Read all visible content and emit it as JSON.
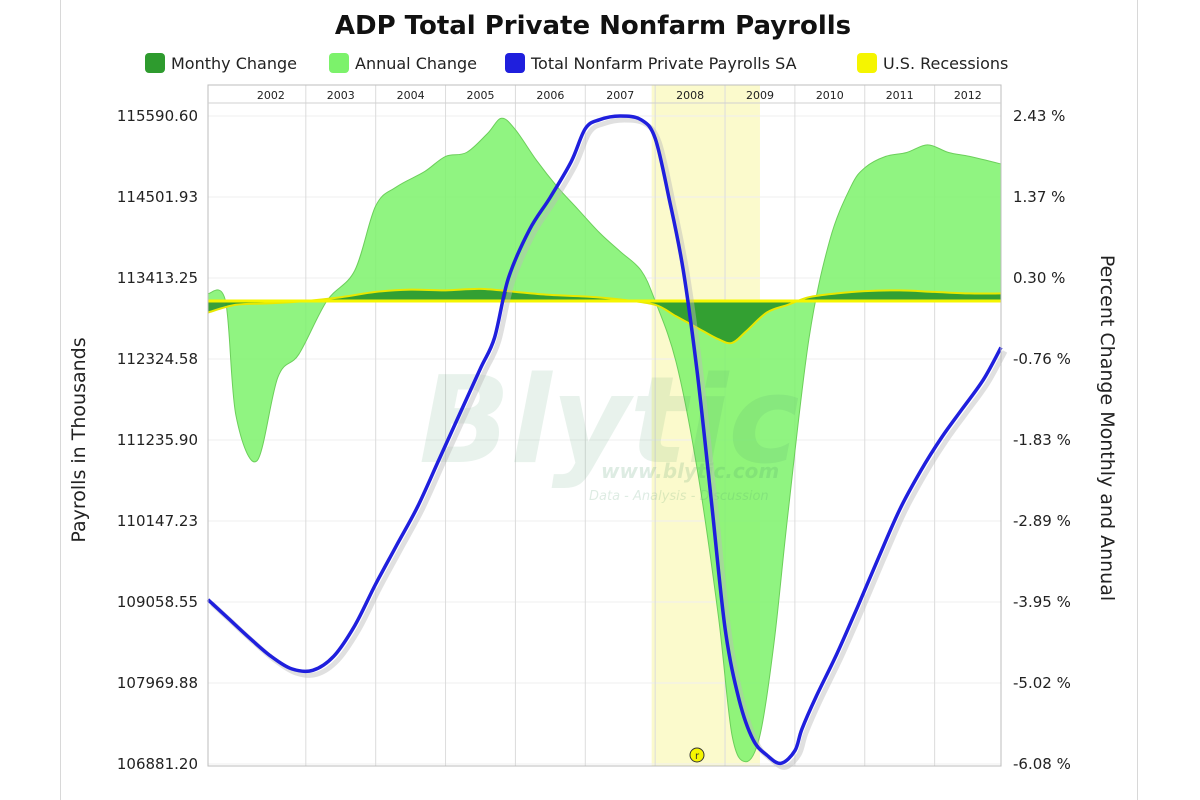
{
  "chart_data": {
    "type": "area",
    "title": "ADP Total Private Nonfarm Payrolls",
    "ylabel_left": "Payrolls in Thousands",
    "ylabel_right": "Percent Change Monthly and Annual",
    "years": [
      "2002",
      "2003",
      "2004",
      "2005",
      "2006",
      "2007",
      "2008",
      "2009",
      "2010",
      "2011",
      "2012"
    ],
    "yticks_left": [
      "115590.60",
      "114501.93",
      "113413.25",
      "112324.58",
      "111235.90",
      "110147.23",
      "109058.55",
      "107969.88",
      "106881.20"
    ],
    "yticks_right": [
      "2.43 %",
      "1.37 %",
      "0.30 %",
      "-0.76 %",
      "-1.83 %",
      "-2.89 %",
      "-3.95 %",
      "-5.02 %",
      "-6.08 %"
    ],
    "ylim_left": [
      106881.2,
      115590.6
    ],
    "ylim_right": [
      -6.08,
      2.43
    ],
    "xlim": [
      2001.6,
      2012.95
    ],
    "legend_position": "top",
    "recession": {
      "start": 2007.95,
      "end": 2009.5
    },
    "series": [
      {
        "name": "Monthy Change",
        "color": "#2e9b2e",
        "axis": "right",
        "x": [
          2001.6,
          2002.0,
          2002.5,
          2003.0,
          2003.5,
          2004.0,
          2004.5,
          2005.0,
          2005.5,
          2006.0,
          2006.5,
          2007.0,
          2007.5,
          2008.0,
          2008.3,
          2008.6,
          2008.9,
          2009.1,
          2009.3,
          2009.6,
          2009.9,
          2010.2,
          2010.6,
          2011.0,
          2011.5,
          2012.0,
          2012.5,
          2012.95
        ],
        "values": [
          -0.15,
          -0.05,
          -0.03,
          0.0,
          0.05,
          0.12,
          0.15,
          0.14,
          0.16,
          0.12,
          0.08,
          0.06,
          0.02,
          -0.05,
          -0.2,
          -0.35,
          -0.5,
          -0.55,
          -0.4,
          -0.15,
          -0.05,
          0.05,
          0.1,
          0.13,
          0.14,
          0.12,
          0.1,
          0.1
        ]
      },
      {
        "name": "Annual Change",
        "color": "#7cf26b",
        "axis": "right",
        "x": [
          2001.6,
          2001.85,
          2002.0,
          2002.3,
          2002.6,
          2002.9,
          2003.3,
          2003.7,
          2004.0,
          2004.3,
          2004.7,
          2005.0,
          2005.3,
          2005.6,
          2005.8,
          2006.0,
          2006.3,
          2006.6,
          2006.9,
          2007.2,
          2007.5,
          2007.8,
          2008.0,
          2008.3,
          2008.6,
          2008.9,
          2009.1,
          2009.3,
          2009.5,
          2009.7,
          2009.9,
          2010.2,
          2010.5,
          2010.8,
          2011.0,
          2011.3,
          2011.6,
          2011.9,
          2012.2,
          2012.5,
          2012.95
        ],
        "values": [
          0.1,
          0.0,
          -1.5,
          -2.1,
          -1.0,
          -0.7,
          0.0,
          0.4,
          1.25,
          1.5,
          1.7,
          1.9,
          1.95,
          2.2,
          2.4,
          2.25,
          1.85,
          1.5,
          1.2,
          0.9,
          0.65,
          0.4,
          0.0,
          -0.8,
          -2.2,
          -4.1,
          -5.7,
          -6.05,
          -5.7,
          -4.5,
          -2.8,
          -0.5,
          0.8,
          1.5,
          1.75,
          1.9,
          1.95,
          2.05,
          1.95,
          1.9,
          1.8
        ]
      },
      {
        "name": "Total Nonfarm Private Payrolls SA",
        "color": "#1f1fdd",
        "axis": "left",
        "x": [
          2001.6,
          2001.9,
          2002.2,
          2002.5,
          2002.8,
          2003.1,
          2003.4,
          2003.7,
          2004.0,
          2004.3,
          2004.6,
          2004.9,
          2005.2,
          2005.5,
          2005.7,
          2005.9,
          2006.2,
          2006.5,
          2006.8,
          2007.0,
          2007.2,
          2007.5,
          2007.8,
          2008.0,
          2008.2,
          2008.4,
          2008.6,
          2008.8,
          2009.0,
          2009.2,
          2009.4,
          2009.6,
          2009.8,
          2010.0,
          2010.1,
          2010.3,
          2010.6,
          2010.9,
          2011.2,
          2011.5,
          2011.8,
          2012.1,
          2012.4,
          2012.7,
          2012.95
        ],
        "values": [
          109090,
          108830,
          108570,
          108330,
          108160,
          108140,
          108330,
          108740,
          109300,
          109820,
          110340,
          110960,
          111580,
          112200,
          112610,
          113410,
          114060,
          114500,
          114980,
          115420,
          115540,
          115590,
          115540,
          115290,
          114480,
          113530,
          112160,
          110460,
          108710,
          107750,
          107210,
          107000,
          106890,
          107060,
          107350,
          107780,
          108360,
          109000,
          109660,
          110300,
          110820,
          111270,
          111660,
          112050,
          112480
        ]
      },
      {
        "name": "U.S. Recessions",
        "color": "#f5f500",
        "axis": "right"
      }
    ]
  },
  "watermark": {
    "brand": "Blytic",
    "url": "www.blytic.com",
    "tagline": "Data - Analysis - Discussion"
  },
  "badge": "r"
}
